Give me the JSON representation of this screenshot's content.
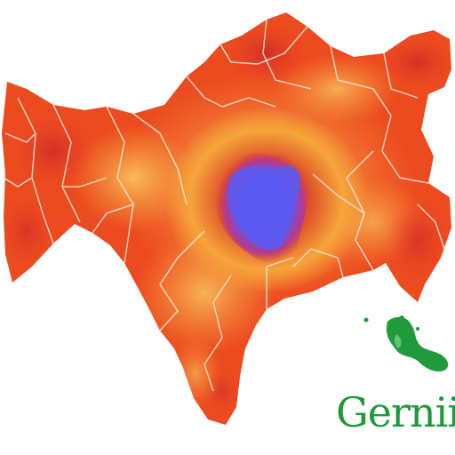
{
  "map": {
    "label": "Gernii",
    "colors": {
      "background": "#ffffff",
      "hot_red": "#e8321c",
      "orange": "#f26a1e",
      "amber": "#f7a52a",
      "yellow": "#f7cf52",
      "magenta": "#c4226a",
      "purple": "#7a4fd8",
      "core_blue": "#5a5cf2",
      "border_line": "#fde7d2",
      "label_green": "#1e9a3a",
      "inset_green": "#1f9b3c",
      "pink_patch": "#e23aa8"
    },
    "inset_icon": "green-region-inset"
  }
}
